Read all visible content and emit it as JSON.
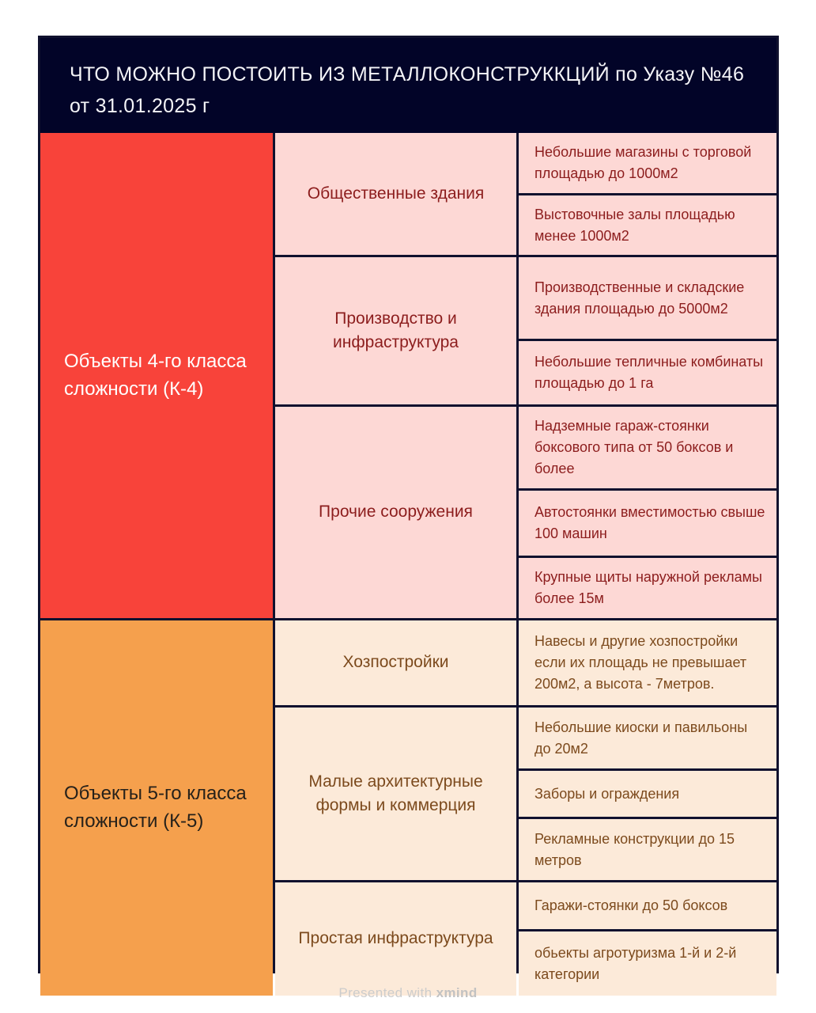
{
  "header": {
    "title": "ЧТО МОЖНО ПОСТОИТЬ ИЗ МЕТАЛЛОКОНСТРУККЦИЙ по Указу №46 от 31.01.2025 г"
  },
  "colors": {
    "header_bg": "#020428",
    "grid": "#10112e",
    "k4_bg": "#f8433a",
    "k4_text": "#ffffff",
    "k5_bg": "#f5a04d",
    "k5_text": "#26211a",
    "k4_cells_bg": "#fdd8d5",
    "k4_cells_text": "#8c1d1d",
    "k5_cells_bg": "#fcead9",
    "k5_cells_text": "#7c4a1d"
  },
  "classes": [
    {
      "label": "Объекты 4-го класса сложности (К-4)",
      "categories": [
        {
          "label": "Общественные здания",
          "items": [
            "Небольшие магазины с торговой площадью до 1000м2",
            "Выстовочные залы площадью менее 1000м2"
          ]
        },
        {
          "label": "Производство и инфраструктура",
          "items": [
            "Производственные и складские здания площадью до 5000м2",
            "Небольшие  тепличные комбинаты площадью до 1 га"
          ]
        },
        {
          "label": "Прочие сооружения",
          "items": [
            "Надземные гараж-стоянки боксового типа от 50 боксов и более",
            "Автостоянки вместимостью свыше 100 машин",
            "Крупные щиты наружной рекламы более 15м"
          ]
        }
      ]
    },
    {
      "label": "Объекты 5-го класса сложности (К-5)",
      "categories": [
        {
          "label": "Хозпостройки",
          "items": [
            "Навесы и другие хозпостройки если их площадь не превышает 200м2, а высота - 7метров."
          ]
        },
        {
          "label": "Малые архитектурные формы и коммерция",
          "items": [
            "Небольшие киоски и павильоны до 20м2",
            "Заборы и ограждения",
            "Рекламные конструкции до 15 метров"
          ]
        },
        {
          "label": "Простая инфраструктура",
          "items": [
            "Гаражи-стоянки до 50 боксов",
            "обьекты агротуризма 1-й и 2-й категории"
          ]
        }
      ]
    }
  ],
  "footer": {
    "presented_with": "Presented with",
    "brand": "xmind"
  }
}
